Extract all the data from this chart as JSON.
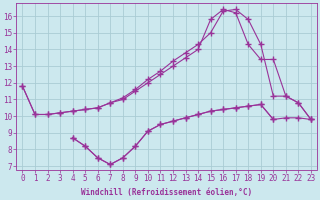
{
  "xlabel": "Windchill (Refroidissement éolien,°C)",
  "x_values": [
    0,
    1,
    2,
    3,
    4,
    5,
    6,
    7,
    8,
    9,
    10,
    11,
    12,
    13,
    14,
    15,
    16,
    17,
    18,
    19,
    20,
    21,
    22,
    23
  ],
  "line1": [
    11.8,
    10.1,
    10.1,
    10.2,
    10.3,
    10.4,
    10.5,
    10.8,
    11.0,
    11.5,
    12.0,
    12.5,
    13.0,
    13.5,
    14.0,
    15.8,
    16.4,
    16.2,
    14.3,
    13.4,
    13.4,
    11.2,
    10.8,
    9.8
  ],
  "line2": [
    11.8,
    10.1,
    10.1,
    10.2,
    10.3,
    10.4,
    10.5,
    10.8,
    11.1,
    11.6,
    12.2,
    12.7,
    13.3,
    13.8,
    14.3,
    15.0,
    16.3,
    16.4,
    15.8,
    14.3,
    11.2,
    11.2,
    10.8,
    9.8
  ],
  "line3": [
    null,
    null,
    null,
    null,
    8.7,
    8.2,
    7.5,
    7.1,
    7.5,
    8.2,
    9.1,
    9.5,
    9.7,
    9.9,
    10.1,
    10.3,
    10.4,
    10.5,
    10.6,
    10.7,
    9.8,
    null,
    null,
    null
  ],
  "line4": [
    null,
    null,
    null,
    null,
    8.7,
    8.2,
    7.5,
    7.1,
    7.5,
    8.2,
    9.1,
    9.5,
    9.7,
    9.9,
    10.1,
    10.3,
    10.4,
    10.5,
    10.6,
    10.7,
    9.8,
    9.9,
    9.9,
    9.8
  ],
  "background_color": "#cce8ee",
  "grid_color": "#aaccd4",
  "line_color": "#993399",
  "ylim": [
    6.8,
    16.8
  ],
  "xlim": [
    -0.5,
    23.5
  ],
  "yticks": [
    7,
    8,
    9,
    10,
    11,
    12,
    13,
    14,
    15,
    16
  ],
  "xticks": [
    0,
    1,
    2,
    3,
    4,
    5,
    6,
    7,
    8,
    9,
    10,
    11,
    12,
    13,
    14,
    15,
    16,
    17,
    18,
    19,
    20,
    21,
    22,
    23
  ],
  "xlabel_fontsize": 5.5,
  "tick_fontsize": 5.5,
  "marker": "+",
  "markersize": 4.0,
  "linewidth": 0.8
}
